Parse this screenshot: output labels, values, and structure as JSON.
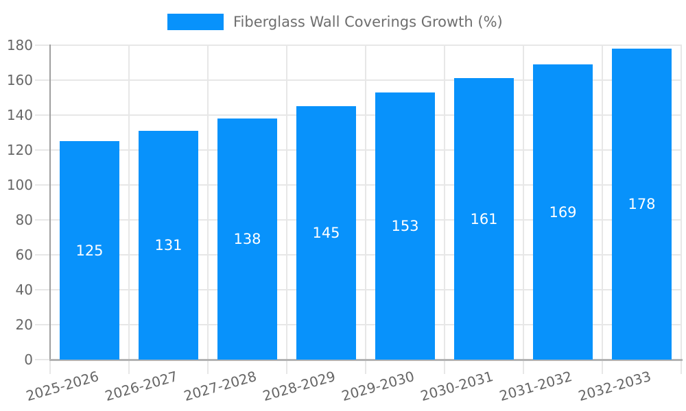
{
  "chart_data": {
    "type": "bar",
    "title": "",
    "legend_label": "Fiberglass Wall Coverings Growth (%)",
    "legend_position": "top-center",
    "categories": [
      "2025-2026",
      "2026-2027",
      "2027-2028",
      "2028-2029",
      "2029-2030",
      "2030-2031",
      "2031-2032",
      "2032-2033"
    ],
    "values": [
      125,
      131,
      138,
      145,
      153,
      161,
      169,
      178
    ],
    "xlabel": "",
    "ylabel": "",
    "ylim": [
      0,
      180
    ],
    "ytick_interval": 20,
    "yticks": [
      0,
      20,
      40,
      60,
      80,
      100,
      120,
      140,
      160,
      180
    ],
    "x_label_rotation_deg": 16,
    "grid": true,
    "value_labels_inside_bars": true,
    "colors": {
      "bar": "#0892fb",
      "grid": "#e7e7e7",
      "y_axis_line": "#9e9e9e",
      "x_axis_line": "#b3b3b3",
      "tick_label": "#666666",
      "legend_text": "#6e6e6e",
      "value_label": "#ffffff",
      "background": "#ffffff"
    }
  }
}
